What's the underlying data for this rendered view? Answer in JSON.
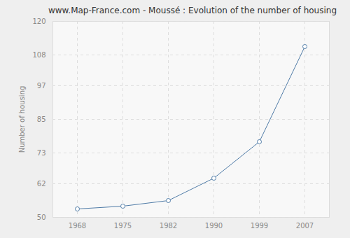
{
  "chart_data": {
    "type": "line",
    "title": "www.Map-France.com - Moussé : Evolution of the number of housing",
    "y_label": "Number of housing",
    "categories": [
      "1968",
      "1975",
      "1982",
      "1990",
      "1999",
      "2007"
    ],
    "values": [
      53,
      54,
      56,
      64,
      77,
      111
    ],
    "color": "#4f7ba7",
    "marker": "circle",
    "ylim": [
      50,
      120
    ],
    "yticks": [
      50,
      62,
      73,
      85,
      97,
      108,
      120
    ],
    "grid": true
  }
}
